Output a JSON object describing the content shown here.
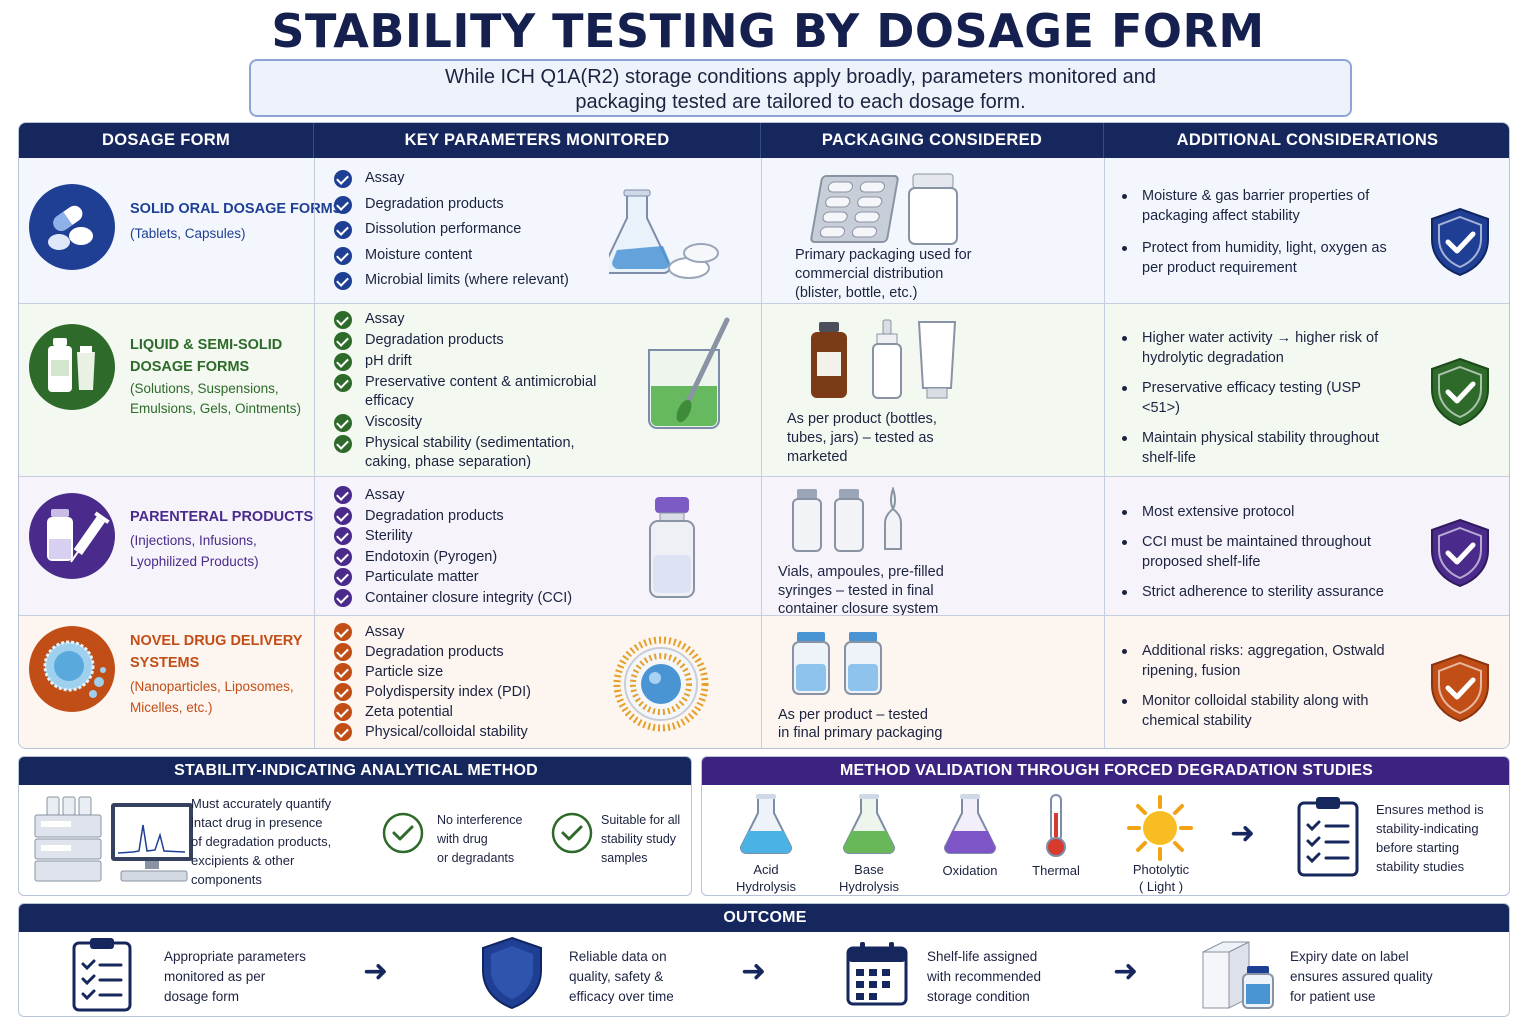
{
  "title": "STABILITY TESTING BY DOSAGE FORM",
  "subtitle_line1": "While ICH Q1A(R2) storage conditions apply broadly, parameters monitored and",
  "subtitle_line2": "packaging tested are tailored to each dosage form.",
  "columns": [
    "DOSAGE FORM",
    "KEY PARAMETERS MONITORED",
    "PACKAGING CONSIDERED",
    "ADDITIONAL CONSIDERATIONS"
  ],
  "rows": [
    {
      "name_lines": [
        "SOLID ORAL DOSAGE FORMS"
      ],
      "sub_lines": [
        "(Tablets, Capsules)"
      ],
      "color": "#1f3f95",
      "bg": "#f3f7fd",
      "params": [
        "Assay",
        "Degradation products",
        "Dissolution performance",
        "Moisture content",
        "Microbial limits (where relevant)"
      ],
      "packaging_lines": [
        "Primary packaging used for",
        "commercial distribution",
        "(blister, bottle, etc.)"
      ],
      "considerations": [
        "Moisture & gas barrier properties of packaging affect stability",
        "Protect from humidity, light, oxygen as per product requirement"
      ]
    },
    {
      "name_lines": [
        "LIQUID & SEMI-SOLID",
        "DOSAGE FORMS"
      ],
      "sub_lines": [
        "(Solutions, Suspensions,",
        "Emulsions, Gels, Ointments)"
      ],
      "color": "#2e6a2a",
      "bg": "#f3f8f1",
      "params": [
        "Assay",
        "Degradation products",
        "pH drift",
        "Preservative content & antimicrobial efficacy",
        "Viscosity",
        "Physical stability (sedimentation, caking, phase separation)"
      ],
      "packaging_lines": [
        "As per product (bottles,",
        "tubes, jars) – tested as",
        "marketed"
      ],
      "considerations": [
        "Higher water activity → higher risk of hydrolytic degradation",
        "Preservative efficacy testing (USP <51>)",
        "Maintain physical stability throughout shelf-life"
      ]
    },
    {
      "name_lines": [
        "PARENTERAL PRODUCTS"
      ],
      "sub_lines": [
        "(Injections, Infusions,",
        "Lyophilized Products)"
      ],
      "color": "#4a2b8c",
      "bg": "#f6f3fb",
      "params": [
        "Assay",
        "Degradation products",
        "Sterility",
        "Endotoxin (Pyrogen)",
        "Particulate matter",
        "Container closure integrity (CCI)"
      ],
      "packaging_lines": [
        "Vials, ampoules, pre-filled",
        "syringes – tested in final",
        "container closure system"
      ],
      "considerations": [
        "Most extensive protocol",
        "CCI must be maintained throughout proposed shelf-life",
        "Strict adherence to sterility assurance"
      ]
    },
    {
      "name_lines": [
        "NOVEL DRUG DELIVERY",
        "SYSTEMS"
      ],
      "sub_lines": [
        "(Nanoparticles, Liposomes,",
        "Micelles, etc.)"
      ],
      "color": "#c24e17",
      "bg": "#fdf5f0",
      "params": [
        "Assay",
        "Degradation products",
        "Particle size",
        "Polydispersity index (PDI)",
        "Zeta potential",
        "Physical/colloidal stability"
      ],
      "packaging_lines": [
        "As per product – tested",
        "in final primary packaging"
      ],
      "considerations": [
        "Additional risks: aggregation, Ostwald ripening, fusion",
        "Monitor colloidal stability along with chemical stability"
      ]
    }
  ],
  "sim": {
    "title": "STABILITY-INDICATING ANALYTICAL METHOD",
    "main_lines": [
      "Must accurately quantify",
      "intact drug in presence",
      "of degradation products,",
      "excipients & other",
      "components"
    ],
    "check1_lines": [
      "No interference",
      "with drug",
      "or degradants"
    ],
    "check2_lines": [
      "Suitable for all",
      "stability study",
      "samples"
    ]
  },
  "fd": {
    "title": "METHOD VALIDATION THROUGH FORCED DEGRADATION STUDIES",
    "items": [
      {
        "lines": [
          "Acid",
          "Hydrolysis"
        ]
      },
      {
        "lines": [
          "Base",
          "Hydrolysis"
        ]
      },
      {
        "lines": [
          "Oxidation"
        ]
      },
      {
        "lines": [
          "Thermal"
        ]
      },
      {
        "lines": [
          "Photolytic",
          "( Light )"
        ]
      }
    ],
    "result_lines": [
      "Ensures method is",
      "stability-indicating",
      "before starting",
      "stability studies"
    ]
  },
  "outcome": {
    "title": "OUTCOME",
    "items": [
      {
        "lines": [
          "Appropriate parameters",
          "monitored as per",
          "dosage form"
        ]
      },
      {
        "lines": [
          "Reliable data on",
          "quality, safety &",
          "efficacy over time"
        ]
      },
      {
        "lines": [
          "Shelf-life assigned",
          "with recommended",
          "storage condition"
        ]
      },
      {
        "lines": [
          "Expiry date on label",
          "ensures assured quality",
          "for patient use"
        ]
      }
    ]
  }
}
